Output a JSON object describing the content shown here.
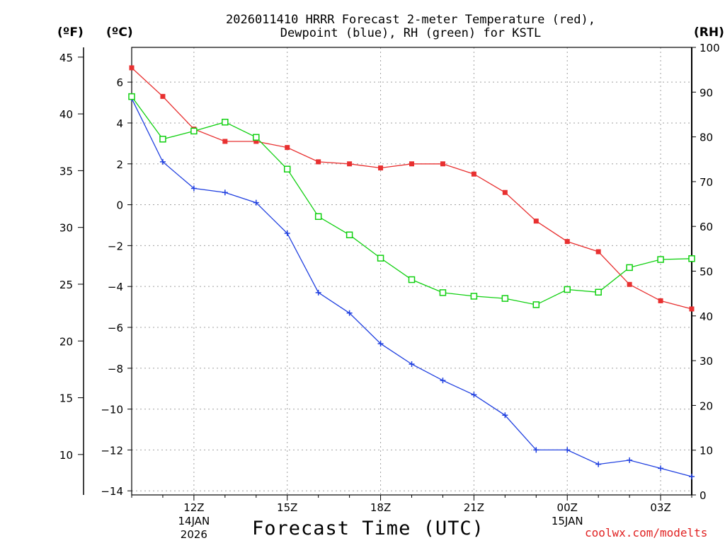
{
  "header": {
    "title_line1": "2026011410 HRRR Forecast 2-meter Temperature (red),",
    "title_line2": "Dewpoint (blue), RH (green) for KSTL",
    "unit_f": "(ºF)",
    "unit_c": "(ºC)",
    "unit_rh": "(RH)"
  },
  "footer": {
    "xlabel": "Forecast Time (UTC)",
    "credit": "coolwx.com/modelts"
  },
  "colors": {
    "temperature": "#e83030",
    "dewpoint": "#2040e0",
    "rh": "#10d010",
    "grid": "#a0a0a0"
  },
  "chart_data": {
    "type": "line",
    "title": "2026011410 HRRR Forecast 2-meter Temperature (red), Dewpoint (blue), RH (green) for KSTL",
    "xlabel": "Forecast Time (UTC)",
    "x_hours": [
      10,
      11,
      12,
      13,
      14,
      15,
      16,
      17,
      18,
      19,
      20,
      21,
      22,
      23,
      24,
      25,
      26,
      27,
      28
    ],
    "xlim": [
      10,
      28
    ],
    "xticks": [
      {
        "hour": 12,
        "label": "12Z",
        "sub1": "14JAN",
        "sub2": "2026"
      },
      {
        "hour": 15,
        "label": "15Z",
        "sub1": "",
        "sub2": ""
      },
      {
        "hour": 18,
        "label": "18Z",
        "sub1": "",
        "sub2": ""
      },
      {
        "hour": 21,
        "label": "21Z",
        "sub1": "",
        "sub2": ""
      },
      {
        "hour": 24,
        "label": "00Z",
        "sub1": "15JAN",
        "sub2": ""
      },
      {
        "hour": 27,
        "label": "03Z",
        "sub1": "",
        "sub2": ""
      }
    ],
    "celsius_axis": {
      "label": "(ºC)",
      "ylim": [
        -14.2,
        7.7
      ],
      "ticks": [
        6,
        4,
        2,
        0,
        -2,
        -4,
        -6,
        -8,
        -10,
        -12,
        -14
      ]
    },
    "fahrenheit_axis": {
      "label": "(ºF)",
      "ticks": [
        45,
        40,
        35,
        30,
        25,
        20,
        15,
        10
      ]
    },
    "rh_axis": {
      "label": "(RH)",
      "ylim": [
        0,
        100
      ],
      "ticks": [
        100,
        90,
        80,
        70,
        60,
        50,
        40,
        30,
        20,
        10,
        0
      ]
    },
    "series": [
      {
        "name": "Temperature",
        "units": "C",
        "marker": "filled-square",
        "values": [
          6.7,
          5.3,
          3.7,
          3.1,
          3.1,
          2.8,
          2.1,
          2.0,
          1.8,
          2.0,
          2.0,
          1.5,
          0.6,
          -0.8,
          -1.8,
          -2.3,
          -3.9,
          -4.7,
          -5.1
        ]
      },
      {
        "name": "Dewpoint",
        "units": "C",
        "marker": "plus",
        "values": [
          5.2,
          2.1,
          0.8,
          0.6,
          0.1,
          -1.4,
          -4.3,
          -5.3,
          -6.8,
          -7.8,
          -8.6,
          -9.3,
          -10.3,
          -12.0,
          -12.0,
          -12.7,
          -12.5,
          -12.9,
          -13.3
        ]
      },
      {
        "name": "RH",
        "units": "%",
        "marker": "open-square",
        "values": [
          89,
          79.5,
          81.3,
          83.3,
          79.9,
          72.8,
          62.2,
          58.1,
          52.9,
          48.1,
          45.2,
          44.4,
          43.9,
          42.5,
          45.9,
          45.3,
          50.8,
          52.6,
          52.8
        ]
      }
    ]
  }
}
